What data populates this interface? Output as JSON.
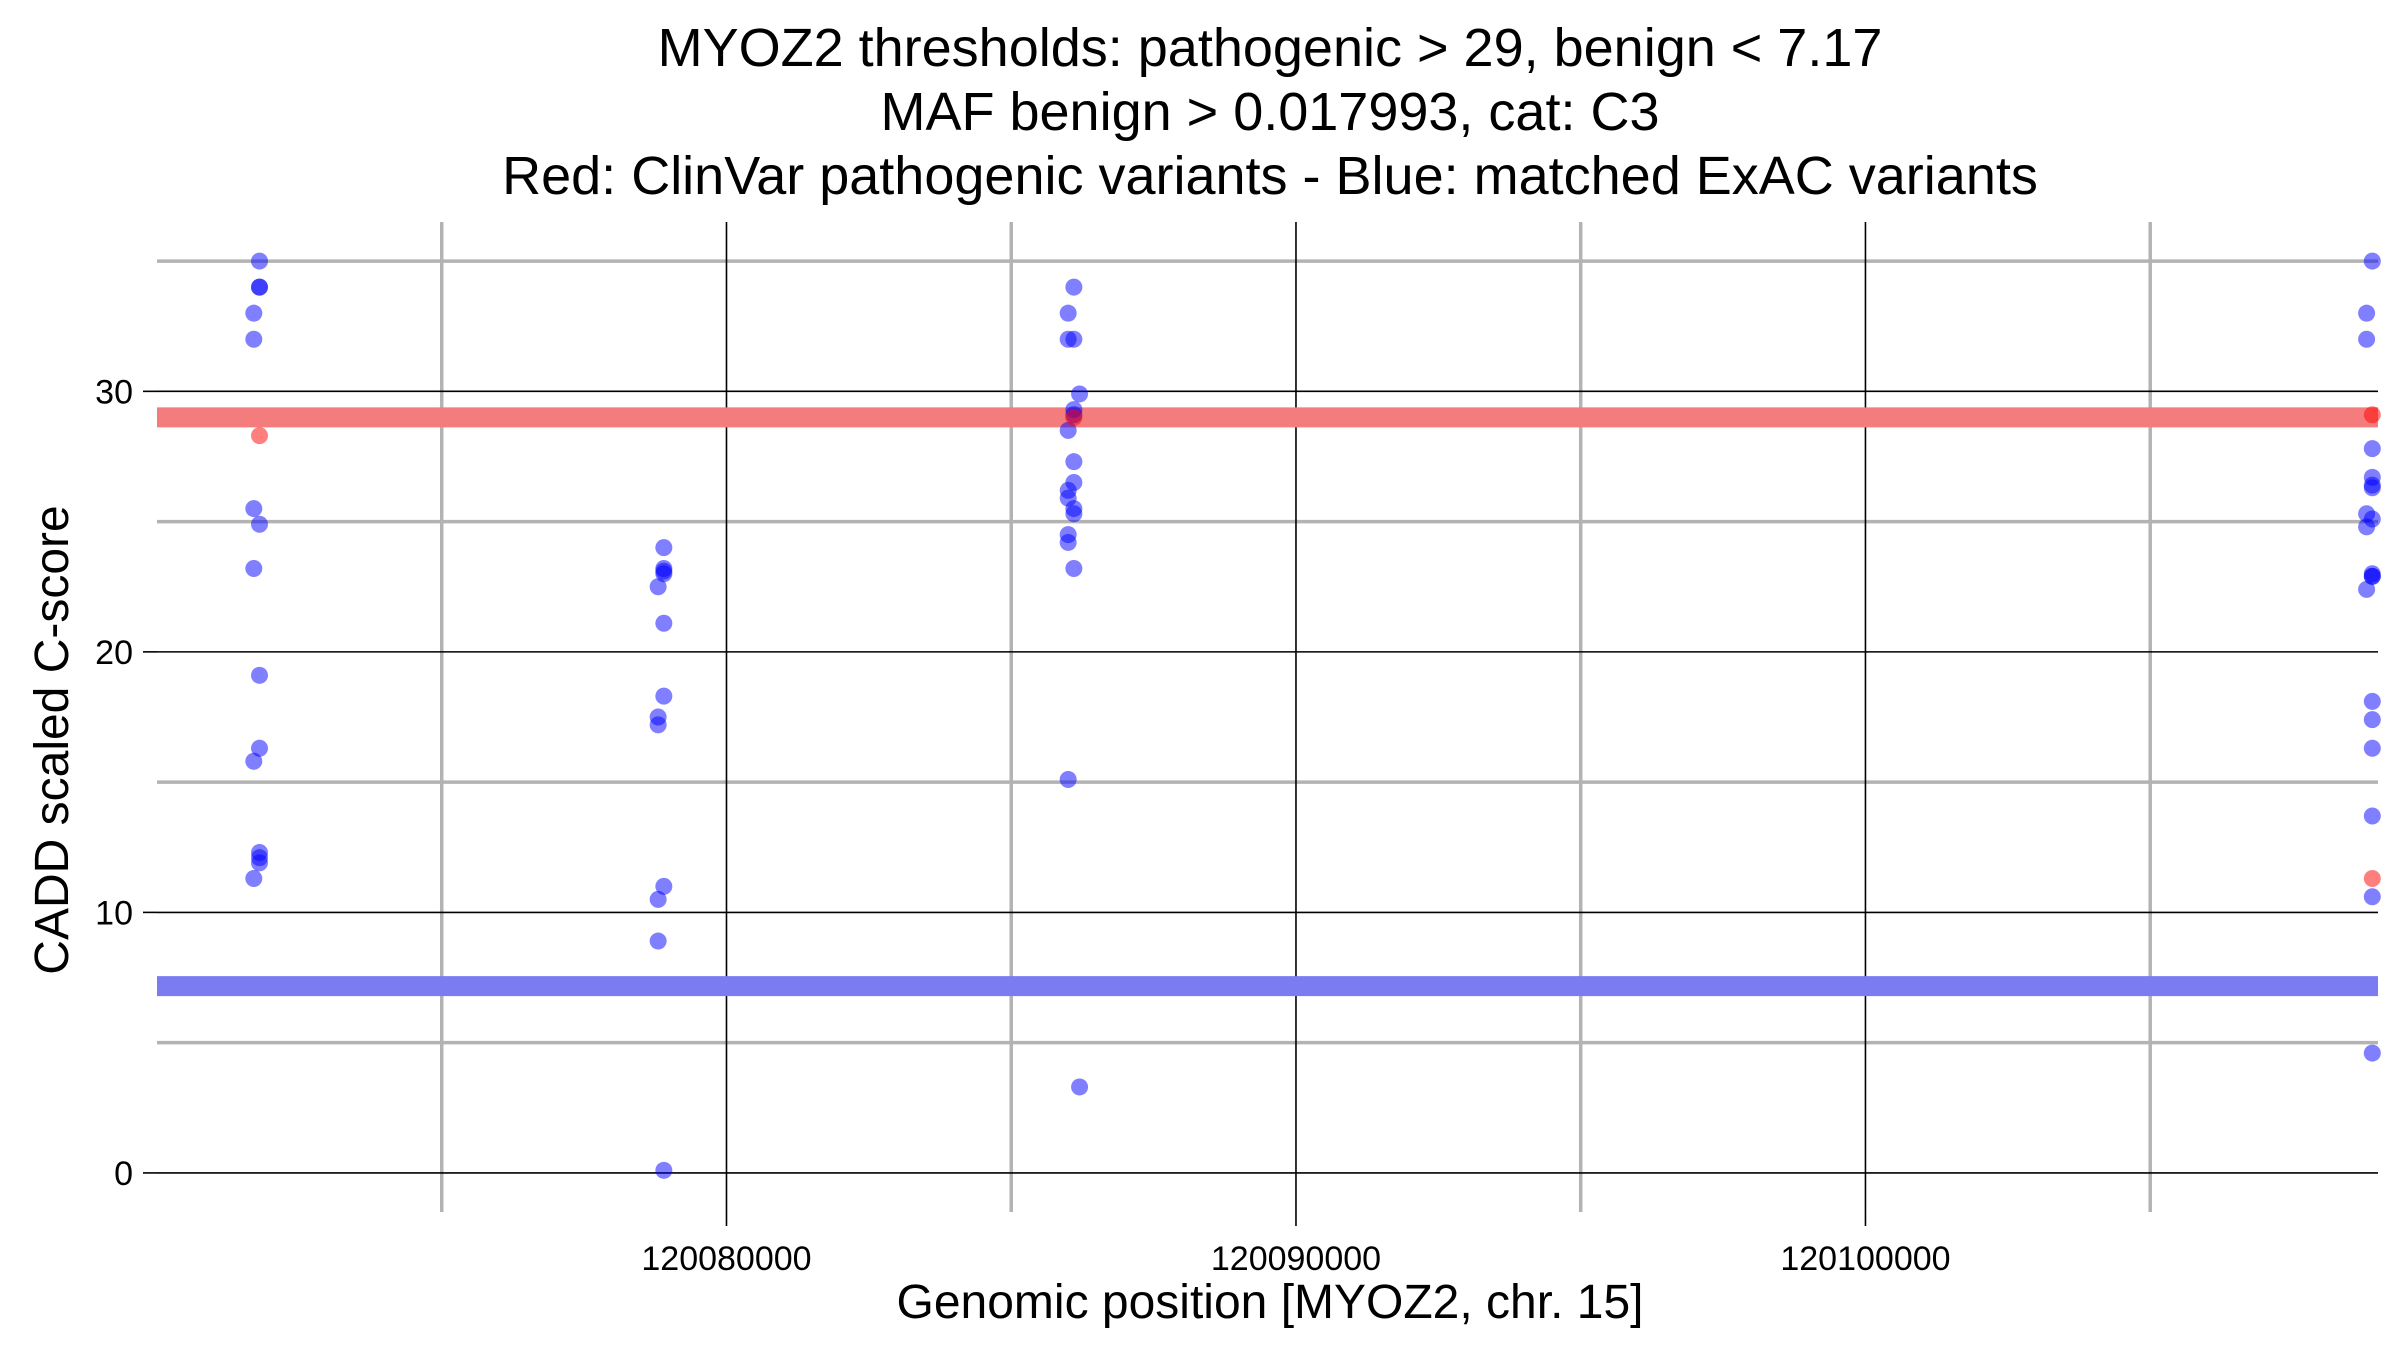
{
  "chart_data": {
    "type": "scatter",
    "title_lines": [
      "MYOZ2 thresholds: pathogenic > 29, benign < 7.17",
      "MAF benign > 0.017993, cat: C3",
      "Red: ClinVar pathogenic variants - Blue: matched ExAC variants"
    ],
    "xlabel": "Genomic position [MYOZ2, chr. 15]",
    "ylabel": "CADD scaled C-score",
    "xlim": [
      120070000,
      120109000
    ],
    "ylim": [
      -1.5,
      36.5
    ],
    "x_major_ticks": [
      120080000,
      120090000,
      120100000
    ],
    "x_minor_lines": [
      120075000,
      120085000,
      120095000,
      120105000
    ],
    "y_major_ticks": [
      0,
      10,
      20,
      30
    ],
    "y_minor_lines": [
      5,
      15,
      25,
      35
    ],
    "grid": true,
    "thresholds": [
      {
        "name": "pathogenic",
        "value": 29,
        "color": "#f47c7c"
      },
      {
        "name": "benign",
        "value": 7.17,
        "color": "#7b7bf2"
      }
    ],
    "colors": {
      "pathogenic": "#f26b6b",
      "benign": "#5a5af0",
      "major_grid": "#000000",
      "minor_grid": "#b3b3b3"
    },
    "series": [
      {
        "name": "ClinVar pathogenic variants",
        "color": "#ff0000",
        "x": [
          120071800,
          120108900,
          120086100,
          120108900
        ],
        "y": [
          28.3,
          29.1,
          29.0,
          11.3
        ]
      },
      {
        "name": "matched ExAC variants",
        "color": "#0000ff",
        "x": [
          120071800,
          120071800,
          120071800,
          120071700,
          120071700,
          120071700,
          120071800,
          120071700,
          120071800,
          120071800,
          120071700,
          120071800,
          120071800,
          120071800,
          120071700,
          120078900,
          120078900,
          120078900,
          120078900,
          120078800,
          120078900,
          120078900,
          120078800,
          120078800,
          120078900,
          120078800,
          120078800,
          120078900,
          120086100,
          120086000,
          120086000,
          120086100,
          120086200,
          120086100,
          120086000,
          120086100,
          120086100,
          120086000,
          120086000,
          120086100,
          120086100,
          120086000,
          120086000,
          120086100,
          120086000,
          120086200,
          120086100,
          120108900,
          120108800,
          120108800,
          120108900,
          120108900,
          120108900,
          120108800,
          120108900,
          120108800,
          120108900,
          120108900,
          120108800,
          120108900,
          120108900,
          120108900,
          120108900,
          120108900,
          120108900,
          120108900,
          120108900
        ],
        "y": [
          35.0,
          34.0,
          34.0,
          33.0,
          32.0,
          25.5,
          24.9,
          23.2,
          19.1,
          16.3,
          15.8,
          12.3,
          12.1,
          11.9,
          11.3,
          24.0,
          23.2,
          23.1,
          23.0,
          22.5,
          21.1,
          18.3,
          17.5,
          17.2,
          11.0,
          10.5,
          8.9,
          0.1,
          34.0,
          33.0,
          32.0,
          32.0,
          29.9,
          29.3,
          28.5,
          27.3,
          26.5,
          26.2,
          25.9,
          25.5,
          25.3,
          24.5,
          24.2,
          23.2,
          15.1,
          3.3,
          29.1,
          35.0,
          33.0,
          32.0,
          27.8,
          26.7,
          26.3,
          25.3,
          25.1,
          24.8,
          23.0,
          22.9,
          22.4,
          18.1,
          17.4,
          16.3,
          13.7,
          10.6,
          4.6,
          22.9,
          26.4
        ]
      }
    ]
  }
}
